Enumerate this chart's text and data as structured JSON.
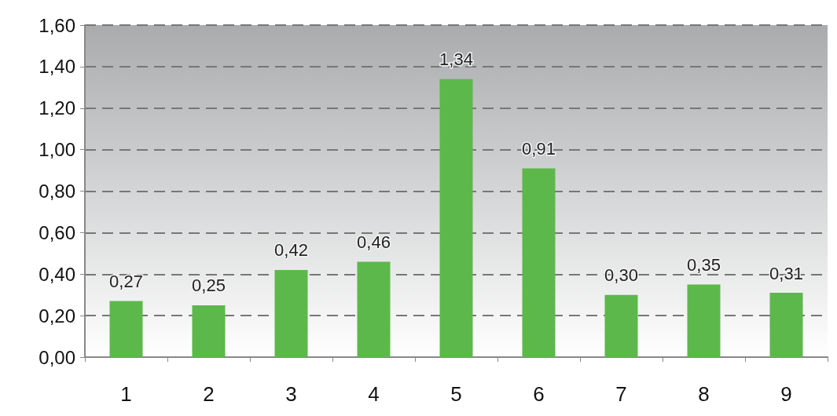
{
  "chart_data": {
    "type": "bar",
    "categories": [
      "1",
      "2",
      "3",
      "4",
      "5",
      "6",
      "7",
      "8",
      "9"
    ],
    "values": [
      0.27,
      0.25,
      0.42,
      0.46,
      1.34,
      0.91,
      0.3,
      0.35,
      0.31
    ],
    "value_labels": [
      "0,27",
      "0,25",
      "0,42",
      "0,46",
      "1,34",
      "0,91",
      "0,30",
      "0,35",
      "0,31"
    ],
    "color": "#5cb84a",
    "ylim": [
      0,
      1.6
    ],
    "yticks": [
      {
        "value": 0,
        "label": "0,00"
      },
      {
        "value": 0.2,
        "label": "0,20"
      },
      {
        "value": 0.4,
        "label": "0,40"
      },
      {
        "value": 0.6,
        "label": "0,60"
      },
      {
        "value": 0.8,
        "label": "0,80"
      },
      {
        "value": 1,
        "label": "1,00"
      },
      {
        "value": 1.2,
        "label": "1,20"
      },
      {
        "value": 1.4,
        "label": "1,40"
      },
      {
        "value": 1.6,
        "label": "1,60"
      }
    ],
    "grid": "y"
  }
}
